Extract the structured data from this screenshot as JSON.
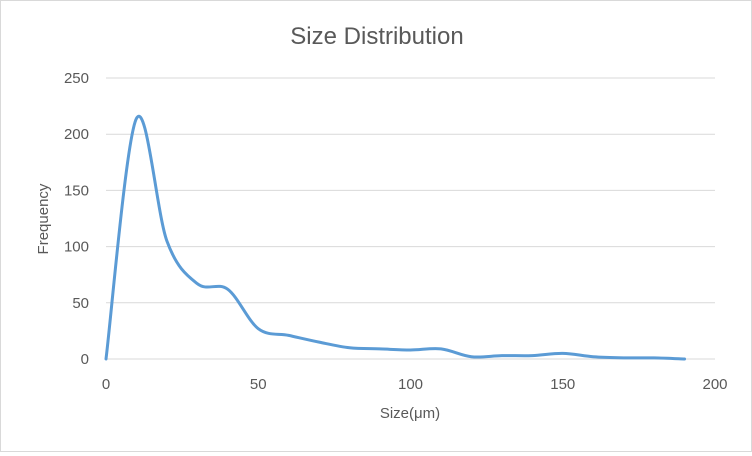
{
  "chart_data": {
    "type": "line",
    "title": "Size Distribution",
    "xlabel": "Size(μm)",
    "ylabel": "Frequency",
    "xlim": [
      0,
      200
    ],
    "ylim": [
      0,
      250
    ],
    "xticks": [
      0,
      50,
      100,
      150,
      200
    ],
    "yticks": [
      0,
      50,
      100,
      150,
      200,
      250
    ],
    "grid": "horizontal",
    "legend": "none",
    "smooth": true,
    "series": [
      {
        "color": "#5b9bd5",
        "x": [
          0,
          10,
          20,
          30,
          40,
          50,
          60,
          70,
          80,
          90,
          100,
          110,
          120,
          130,
          140,
          150,
          160,
          170,
          180,
          190
        ],
        "y": [
          0,
          214,
          105,
          67,
          62,
          27,
          21,
          15,
          10,
          9,
          8,
          9,
          2,
          3,
          3,
          5,
          2,
          1,
          1,
          0
        ]
      }
    ]
  }
}
